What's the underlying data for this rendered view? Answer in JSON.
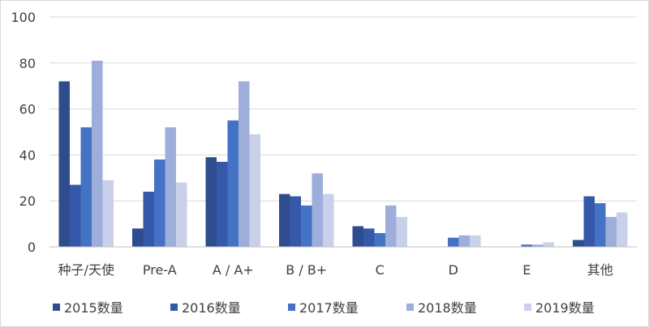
{
  "chart_data": {
    "type": "bar",
    "title": "",
    "xlabel": "",
    "ylabel": "",
    "ylim": [
      0,
      100
    ],
    "yticks": [
      0,
      20,
      40,
      60,
      80,
      100
    ],
    "grid": true,
    "legend_position": "bottom",
    "categories": [
      "种子/天使",
      "Pre-A",
      "A / A+",
      "B / B+",
      "C",
      "D",
      "E",
      "其他"
    ],
    "series": [
      {
        "name": "2015数量",
        "color": "#2e4d8f",
        "values": [
          72,
          8,
          39,
          23,
          9,
          0,
          0,
          3
        ]
      },
      {
        "name": "2016数量",
        "color": "#3559a8",
        "values": [
          27,
          24,
          37,
          22,
          8,
          0,
          0,
          22
        ]
      },
      {
        "name": "2017数量",
        "color": "#4472c4",
        "values": [
          52,
          38,
          55,
          18,
          6,
          4,
          1,
          19
        ]
      },
      {
        "name": "2018数量",
        "color": "#9eaedb",
        "values": [
          81,
          52,
          72,
          32,
          18,
          5,
          1,
          13
        ]
      },
      {
        "name": "2019数量",
        "color": "#c9d0ea",
        "values": [
          29,
          28,
          49,
          23,
          13,
          5,
          2,
          15
        ]
      }
    ]
  }
}
